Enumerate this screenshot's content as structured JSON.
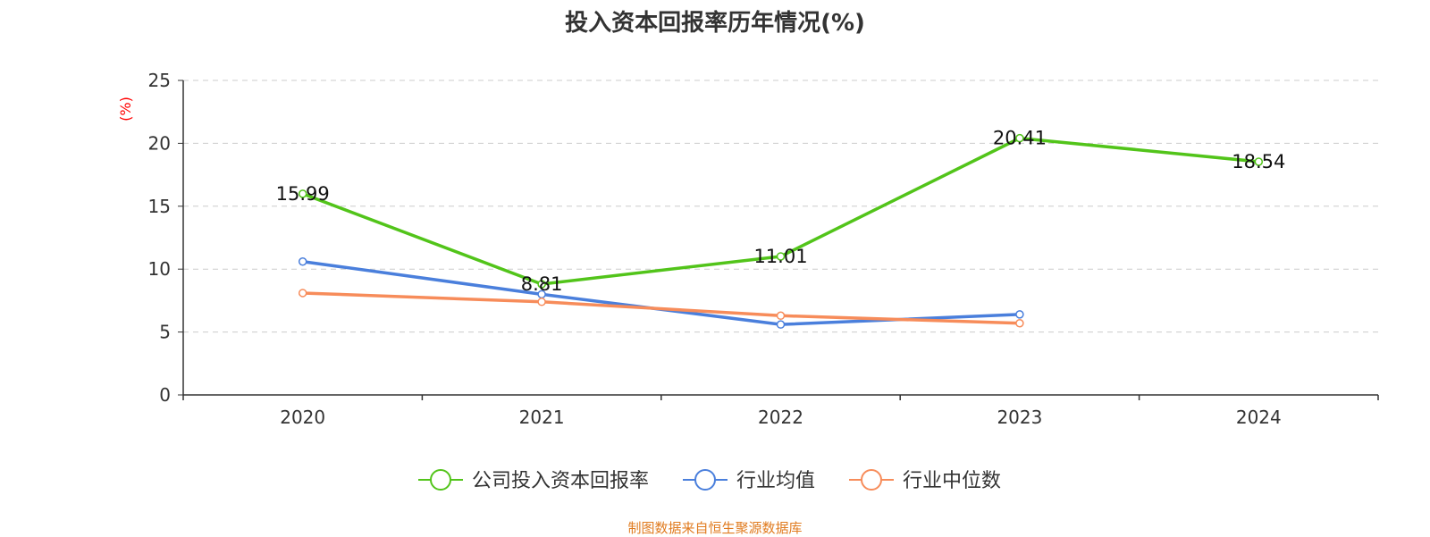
{
  "chart_data": {
    "type": "line",
    "title": "投入资本回报率历年情况(%)",
    "ylabel": "(%)",
    "ylim": [
      0,
      25
    ],
    "yticks": [
      0,
      5,
      10,
      15,
      20,
      25
    ],
    "categories": [
      "2020",
      "2021",
      "2022",
      "2023",
      "2024"
    ],
    "grid": true,
    "legend_position": "bottom",
    "series": [
      {
        "name": "公司投入资本回报率",
        "color": "#52c41a",
        "values": [
          15.99,
          8.81,
          11.01,
          20.41,
          18.54
        ],
        "labels": [
          "15.99",
          "8.81",
          "11.01",
          "20.41",
          "18.54"
        ]
      },
      {
        "name": "行业均值",
        "color": "#4a7fdc",
        "values": [
          10.6,
          8.0,
          5.6,
          6.4,
          null
        ]
      },
      {
        "name": "行业中位数",
        "color": "#f78c5a",
        "values": [
          8.1,
          7.4,
          6.3,
          5.7,
          null
        ]
      }
    ]
  },
  "source_text": "制图数据来自恒生聚源数据库",
  "source_color": "#e07b1f",
  "ylabel_color": "#ff0000"
}
